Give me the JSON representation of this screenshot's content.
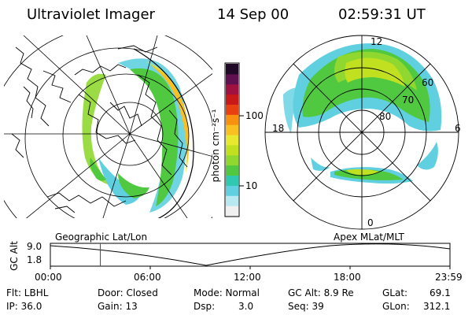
{
  "header": {
    "title": "Ultraviolet Imager",
    "date": "14 Sep 00",
    "time": "02:59:31 UT"
  },
  "colorbar": {
    "unit_label": "photon cm⁻²s⁻¹",
    "tick_100": "100",
    "tick_10": "10",
    "colors": [
      "#f0f0f0",
      "#b8e8f0",
      "#60d0e0",
      "#30c8b0",
      "#50c840",
      "#90d830",
      "#c0e020",
      "#e8e830",
      "#f8c020",
      "#f89010",
      "#e84010",
      "#c81818",
      "#a01040",
      "#601050",
      "#200828"
    ]
  },
  "polar_labels": {
    "mlt_12": "12",
    "mlt_18": "18",
    "mlt_6": "6",
    "mlt_0": "0",
    "lat_60": "60",
    "lat_70": "70",
    "lat_80": "80"
  },
  "panel_labels": {
    "geo": "Geographic Lat/Lon",
    "apex": "Apex MLat/MLT"
  },
  "timeline": {
    "axis_label": "GC Alt",
    "y_top": "9.0",
    "y_bottom": "1.8",
    "ticks": [
      "00:00",
      "06:00",
      "12:00",
      "18:00",
      "23:59"
    ],
    "current_fraction": 0.125
  },
  "info": {
    "flt": "Flt: LBHL",
    "ip": "IP: 36.0",
    "door": "Door: Closed",
    "gain": "Gain: 13",
    "mode": "Mode: Normal",
    "dsp_label": "Dsp:",
    "dsp_value": "3.0",
    "gcalt": "GC Alt: 8.9 Re",
    "seq": "Seq: 39",
    "glat_label": "GLat:",
    "glat_value": "69.1",
    "glon_label": "GLon:",
    "glon_value": "312.1"
  }
}
